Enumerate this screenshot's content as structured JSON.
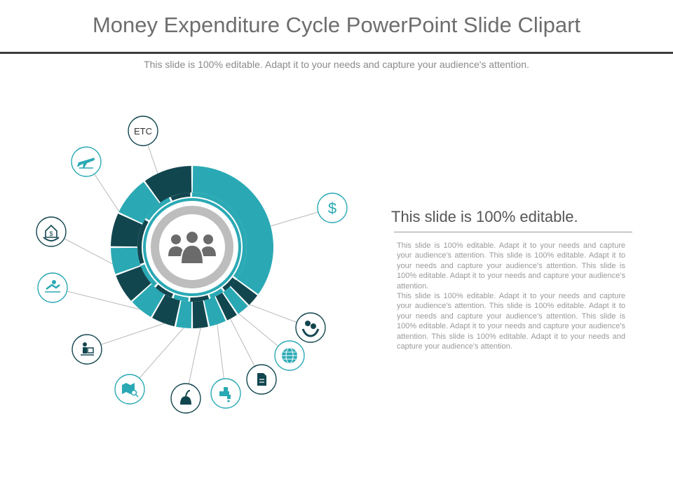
{
  "slide": {
    "title": "Money Expenditure Cycle PowerPoint Slide Clipart",
    "subtitle": "This slide is 100% editable. Adapt it to your needs and capture your audience's attention."
  },
  "side_panel": {
    "heading": "This slide is 100% editable.",
    "paragraphs": [
      "This slide is 100% editable. Adapt it to your needs and capture your audience's attention. This slide is 100% editable. Adapt it to your needs and capture your audience's attention. This slide is 100% editable. Adapt it to your needs and capture your audience's attention.",
      "This slide is 100% editable. Adapt it to your needs and capture your audience's attention. This slide is 100% editable. Adapt it to your needs and capture your audience's attention. This slide is 100% editable. Adapt it to your needs and capture your audience's attention. This slide is 100% editable. Adapt it to your needs and capture your audience's attention."
    ]
  },
  "colors": {
    "teal": "#2aa9b4",
    "dark_teal": "#12464f",
    "gray": "#bdbdbd",
    "person_gray": "#6b6b6b"
  },
  "ring_segments": [
    {
      "id": "dollar",
      "color": "teal"
    },
    {
      "id": "money-hands",
      "color": "dark_teal"
    },
    {
      "id": "globe",
      "color": "teal"
    },
    {
      "id": "document",
      "color": "dark_teal"
    },
    {
      "id": "water-tap",
      "color": "teal"
    },
    {
      "id": "vacuum",
      "color": "dark_teal"
    },
    {
      "id": "map",
      "color": "teal"
    },
    {
      "id": "desk-worker",
      "color": "dark_teal"
    },
    {
      "id": "accident",
      "color": "teal"
    },
    {
      "id": "house-money",
      "color": "dark_teal"
    },
    {
      "id": "airplane",
      "color": "teal"
    },
    {
      "id": "etc",
      "color": "dark_teal"
    }
  ],
  "icons": [
    {
      "name": "dollar-icon",
      "glyph": "$",
      "color": "teal"
    },
    {
      "name": "money-hands-icon",
      "glyph": "",
      "color": "dark_teal"
    },
    {
      "name": "globe-icon",
      "glyph": "",
      "color": "teal"
    },
    {
      "name": "document-icon",
      "glyph": "",
      "color": "dark_teal"
    },
    {
      "name": "water-tap-icon",
      "glyph": "",
      "color": "teal"
    },
    {
      "name": "vacuum-icon",
      "glyph": "",
      "color": "dark_teal"
    },
    {
      "name": "map-search-icon",
      "glyph": "",
      "color": "teal"
    },
    {
      "name": "desk-worker-icon",
      "glyph": "",
      "color": "dark_teal"
    },
    {
      "name": "accident-icon",
      "glyph": "",
      "color": "teal"
    },
    {
      "name": "house-money-icon",
      "glyph": "",
      "color": "dark_teal"
    },
    {
      "name": "airplane-icon",
      "glyph": "",
      "color": "teal"
    },
    {
      "name": "etc-icon",
      "glyph": "ETC",
      "color": "dark_teal"
    }
  ],
  "center": {
    "icon": "people-group-icon"
  }
}
